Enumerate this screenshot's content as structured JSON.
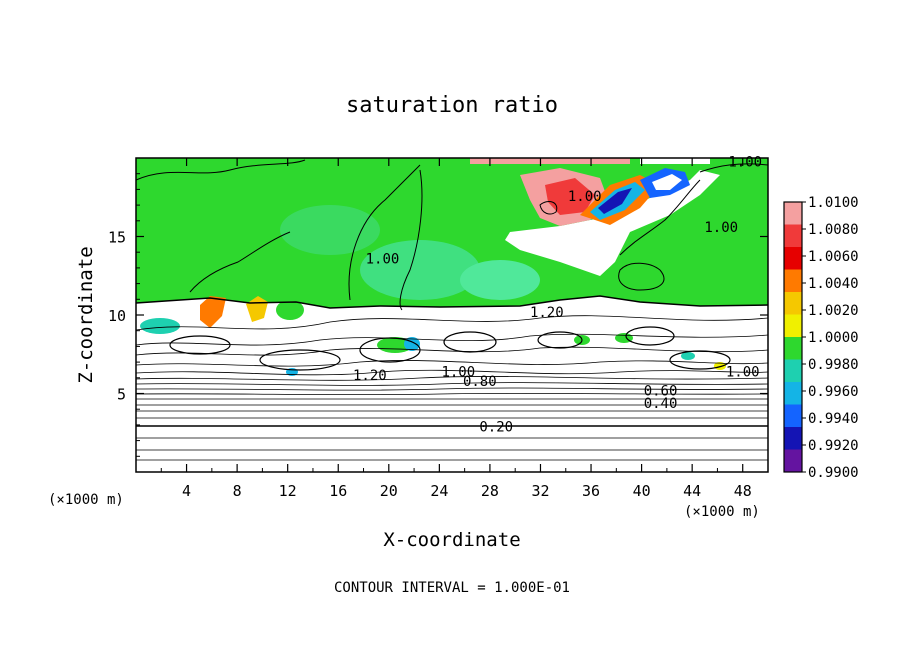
{
  "chart_data": {
    "type": "heatmap",
    "title": "saturation ratio",
    "xlabel": "X-coordinate",
    "ylabel": "Z-coordinate",
    "x_unit_left": "(×1000 m)",
    "x_unit_right": "(×1000 m)",
    "xlim": [
      0,
      50
    ],
    "ylim": [
      0,
      20
    ],
    "x_ticks": [
      "4",
      "8",
      "12",
      "16",
      "20",
      "24",
      "28",
      "32",
      "36",
      "40",
      "44",
      "48"
    ],
    "y_ticks": [
      "5",
      "10",
      "15"
    ],
    "footer": "CONTOUR INTERVAL = 1.000E-01",
    "colorbar": {
      "labels": [
        "1.0100",
        "1.0080",
        "1.0060",
        "1.0040",
        "1.0020",
        "1.0000",
        "0.9980",
        "0.9960",
        "0.9940",
        "0.9920",
        "0.9900"
      ],
      "colors": [
        "#f4a0a0",
        "#f03a3a",
        "#e60000",
        "#ff7a00",
        "#f5c800",
        "#f0f000",
        "#2ed82e",
        "#1ed0b0",
        "#14b4e6",
        "#1464ff",
        "#1414b4",
        "#6414a0"
      ]
    },
    "contour_labels": [
      {
        "text": "1.00",
        "x": 19.5,
        "z": 13.4
      },
      {
        "text": "1.00",
        "x": 35.5,
        "z": 17.4
      },
      {
        "text": "1.00",
        "x": 46.3,
        "z": 15.4
      },
      {
        "text": "1.00",
        "x": 48.2,
        "z": 19.6
      },
      {
        "text": "1.20",
        "x": 32.5,
        "z": 10.0
      },
      {
        "text": "1.20",
        "x": 18.5,
        "z": 6.0
      },
      {
        "text": "1.00",
        "x": 48.0,
        "z": 6.2
      },
      {
        "text": "1.00",
        "x": 25.5,
        "z": 6.2
      },
      {
        "text": "0.80",
        "x": 27.2,
        "z": 5.6
      },
      {
        "text": "0.60",
        "x": 41.5,
        "z": 5.0
      },
      {
        "text": "0.40",
        "x": 41.5,
        "z": 4.2
      },
      {
        "text": "0.20",
        "x": 28.5,
        "z": 2.7
      }
    ]
  }
}
